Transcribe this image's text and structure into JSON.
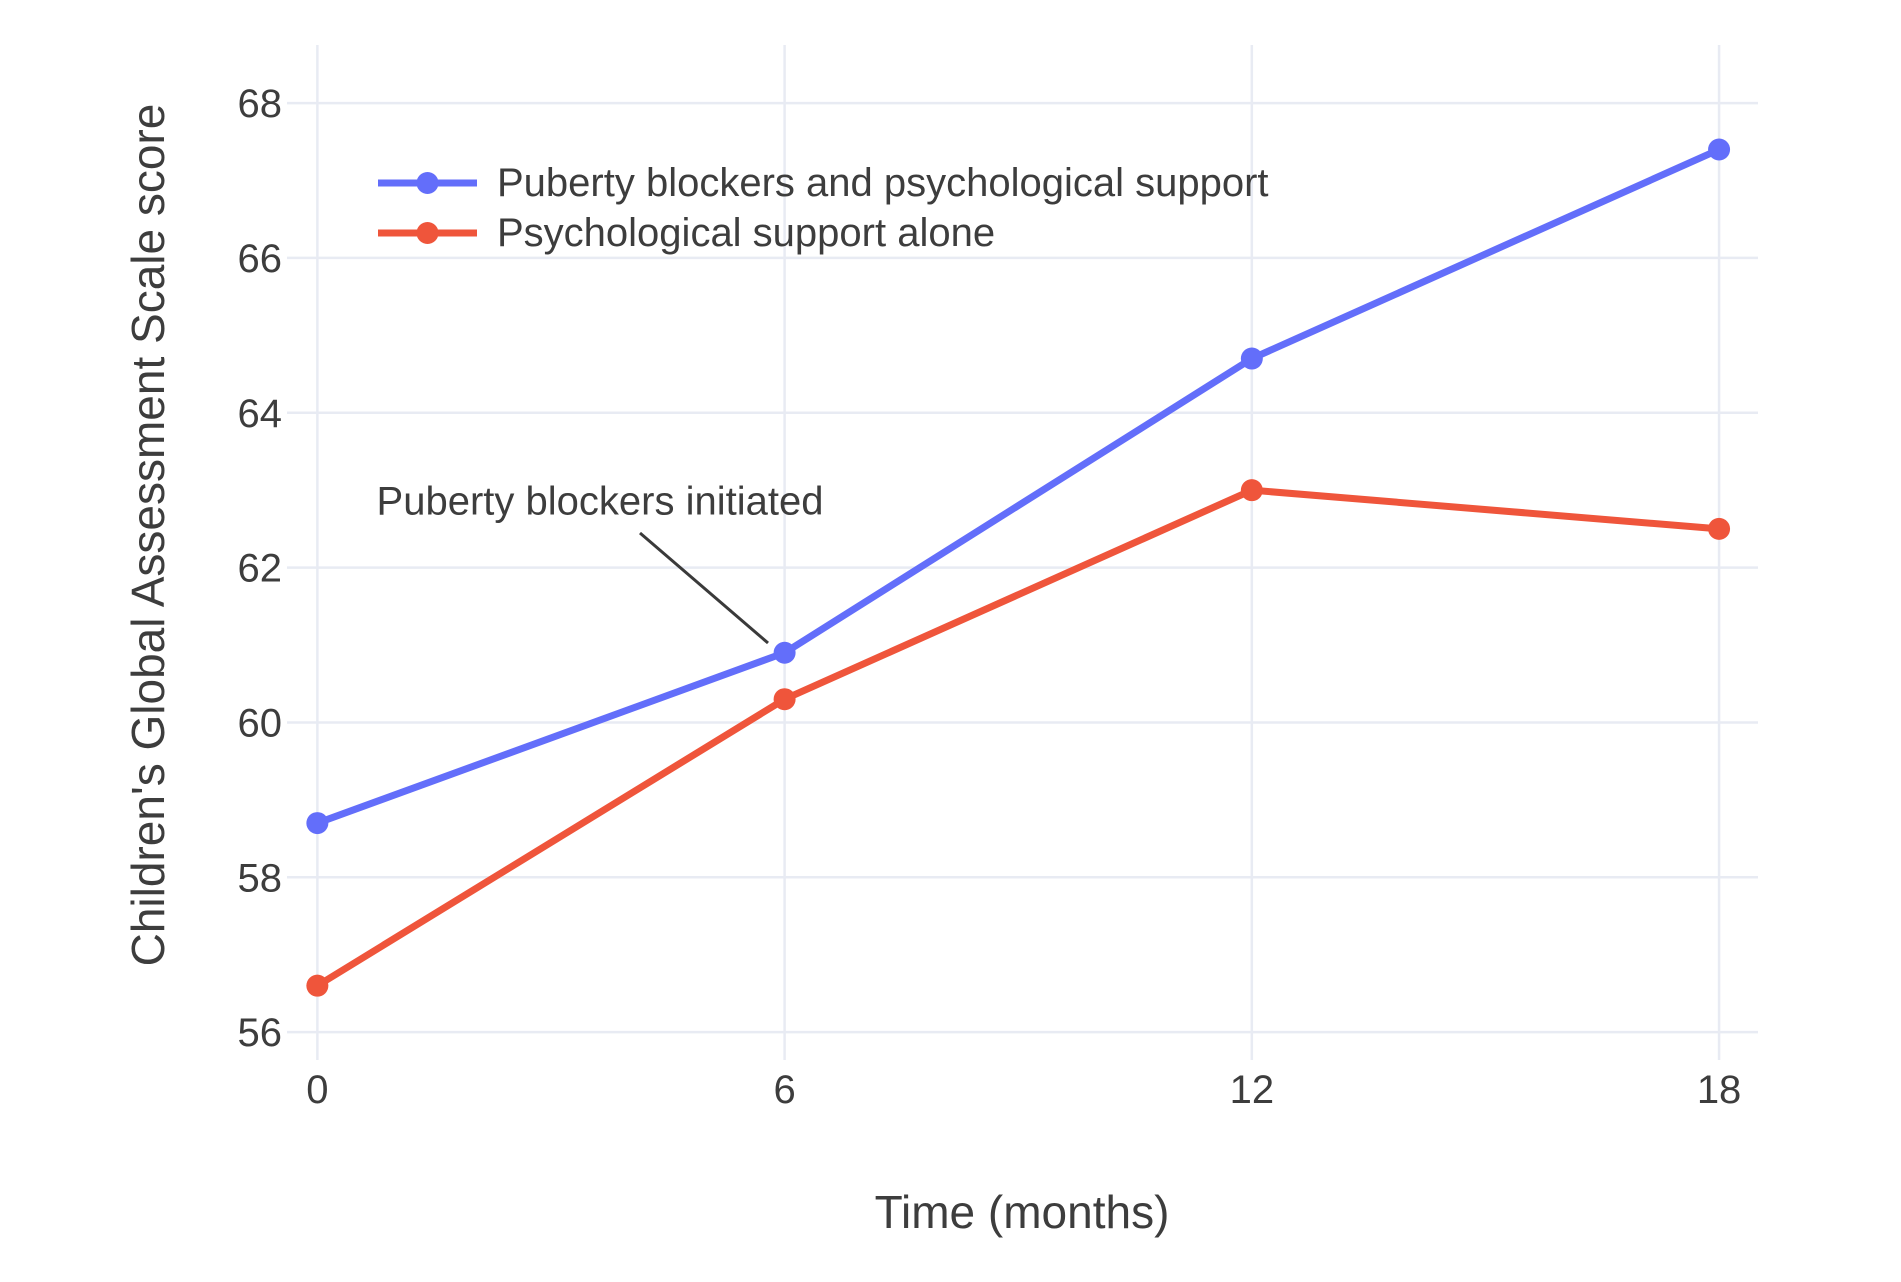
{
  "chart_data": {
    "type": "line",
    "x": [
      0,
      6,
      12,
      18
    ],
    "series": [
      {
        "name": "Puberty blockers and psychological support",
        "color": "#636EFA",
        "values": [
          58.7,
          60.9,
          64.7,
          67.4
        ]
      },
      {
        "name": "Psychological support alone",
        "color": "#EF553B",
        "values": [
          56.6,
          60.3,
          63.0,
          62.5
        ]
      }
    ],
    "title": "",
    "xlabel": "Time (months)",
    "ylabel": "Children's Global Assessment Scale score",
    "x_ticks": [
      0,
      6,
      12,
      18
    ],
    "y_ticks": [
      56,
      58,
      60,
      62,
      64,
      66,
      68
    ],
    "x_range": [
      -0.39,
      18.5
    ],
    "y_range": [
      55.64,
      68.75
    ],
    "grid": true,
    "legend_position": "top-left-inside",
    "annotation": {
      "text": "Puberty blockers initiated",
      "target_x": 6,
      "target_y": 60.9
    }
  },
  "colors": {
    "text": "#3d3d3d",
    "grid": "#e8ebf3",
    "background": "#ffffff",
    "annotation_line": "#3a3a3a"
  }
}
